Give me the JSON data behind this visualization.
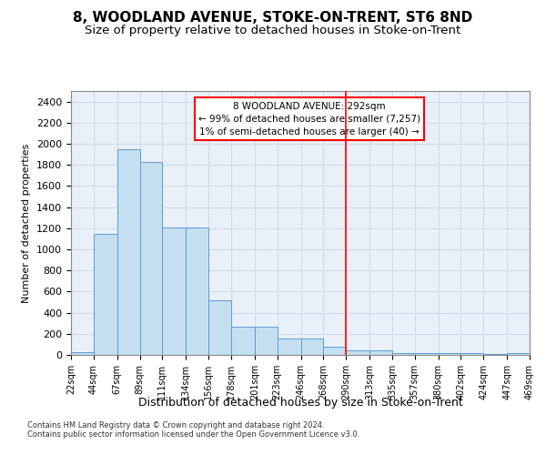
{
  "title": "8, WOODLAND AVENUE, STOKE-ON-TRENT, ST6 8ND",
  "subtitle": "Size of property relative to detached houses in Stoke-on-Trent",
  "xlabel": "Distribution of detached houses by size in Stoke-on-Trent",
  "ylabel": "Number of detached properties",
  "footer_line1": "Contains HM Land Registry data © Crown copyright and database right 2024.",
  "footer_line2": "Contains public sector information licensed under the Open Government Licence v3.0.",
  "bin_edges": [
    22,
    44,
    67,
    89,
    111,
    134,
    156,
    178,
    201,
    223,
    246,
    268,
    290,
    313,
    335,
    357,
    380,
    402,
    424,
    447,
    469
  ],
  "bar_heights": [
    25,
    1150,
    1950,
    1830,
    1210,
    1210,
    520,
    270,
    265,
    155,
    155,
    75,
    40,
    40,
    20,
    20,
    20,
    20,
    10,
    15
  ],
  "bar_color": "#c5dff0",
  "bar_edge_color": "#5b9bd5",
  "vline_x": 290,
  "vline_color": "red",
  "annotation_title": "8 WOODLAND AVENUE: 292sqm",
  "annotation_line1": "← 99% of detached houses are smaller (7,257)",
  "annotation_line2": "1% of semi-detached houses are larger (40) →",
  "ylim": [
    0,
    2500
  ],
  "yticks": [
    0,
    200,
    400,
    600,
    800,
    1000,
    1200,
    1400,
    1600,
    1800,
    2000,
    2200,
    2400
  ],
  "grid_color": "#d0dcea",
  "background_color": "#eaf0f8",
  "title_fontsize": 11,
  "subtitle_fontsize": 9.5,
  "axis_label_fontsize": 8,
  "tick_label_fontsize": 7,
  "footer_fontsize": 6
}
